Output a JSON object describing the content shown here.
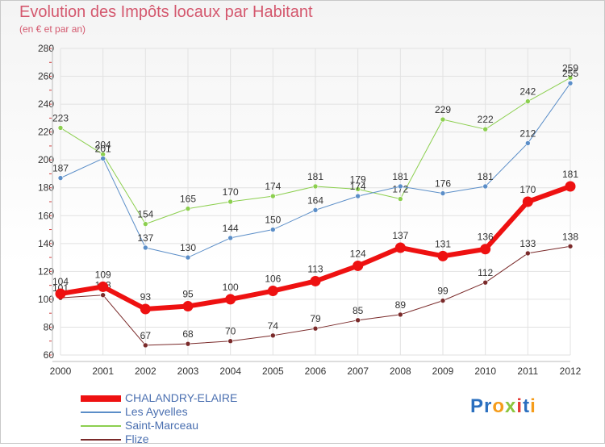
{
  "header": {
    "title": "Evolution des Impôts locaux par Habitant",
    "subtitle": "(en € et par an)"
  },
  "logo": {
    "text": "Proxiti",
    "letters": [
      "P",
      "r",
      "o",
      "x",
      "i",
      "t",
      "i"
    ],
    "colors": [
      "#2a6fbf",
      "#2a6fbf",
      "#f59c1a",
      "#8cc63f",
      "#e53935",
      "#2a6fbf",
      "#f59c1a"
    ]
  },
  "chart_data": {
    "type": "line",
    "x": [
      2000,
      2001,
      2002,
      2003,
      2004,
      2005,
      2006,
      2007,
      2008,
      2009,
      2010,
      2011,
      2012
    ],
    "ylim": [
      60,
      280
    ],
    "yticks": [
      60,
      80,
      100,
      120,
      140,
      160,
      180,
      200,
      220,
      240,
      260,
      280
    ],
    "grid": true,
    "legend": "bottom-left",
    "series": [
      {
        "name": "Saint-Marceau",
        "color": "#8ccf4f",
        "width": 1,
        "values": [
          223,
          204,
          154,
          165,
          170,
          174,
          181,
          179,
          172,
          229,
          222,
          242,
          259
        ]
      },
      {
        "name": "Les Ayvelles",
        "color": "#5b8ec8",
        "width": 1,
        "values": [
          187,
          201,
          137,
          130,
          144,
          150,
          164,
          174,
          181,
          176,
          181,
          212,
          255
        ]
      },
      {
        "name": "Flize",
        "color": "#7a2a2a",
        "width": 1,
        "values": [
          101,
          103,
          67,
          68,
          70,
          74,
          79,
          85,
          89,
          99,
          112,
          133,
          138
        ]
      },
      {
        "name": "CHALANDRY-ELAIRE",
        "color": "#ee1111",
        "width": 6,
        "values": [
          104,
          109,
          93,
          95,
          100,
          106,
          113,
          124,
          137,
          131,
          136,
          170,
          181
        ]
      }
    ],
    "legend_order": [
      "CHALANDRY-ELAIRE",
      "Les Ayvelles",
      "Saint-Marceau",
      "Flize"
    ]
  }
}
